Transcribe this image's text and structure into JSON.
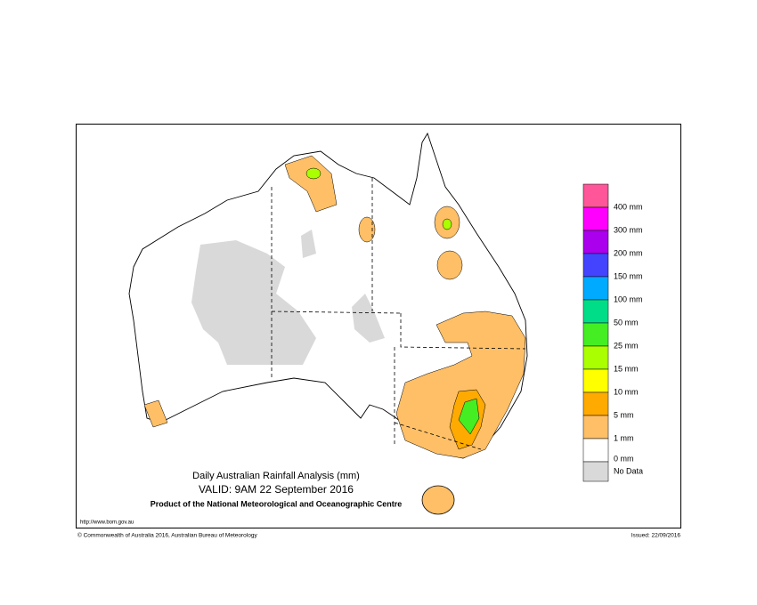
{
  "header": {
    "title": "Daily Australian Rainfall Analysis (mm)",
    "valid": "VALID: 9AM 22 September 2016",
    "product": "Product of the National Meteorological and Oceanographic Centre"
  },
  "footer": {
    "url": "http://www.bom.gov.au",
    "copyright": "© Commonwealth of Australia 2016, Australian Bureau of Meteorology",
    "issued": "Issued: 22/09/2016"
  },
  "legend": {
    "colors": [
      "#ff5599",
      "#ff00ff",
      "#aa00ee",
      "#4444ff",
      "#00aaff",
      "#00dd88",
      "#44ee22",
      "#aaff00",
      "#ffff00",
      "#ffaa00",
      "#ffbf66",
      "#ffffff",
      "#d9d9d9"
    ],
    "labels": [
      "400 mm",
      "300 mm",
      "200 mm",
      "150 mm",
      "100 mm",
      "50 mm",
      "25 mm",
      "15 mm",
      "10 mm",
      "5 mm",
      "1 mm",
      "0 mm",
      "No Data"
    ]
  }
}
